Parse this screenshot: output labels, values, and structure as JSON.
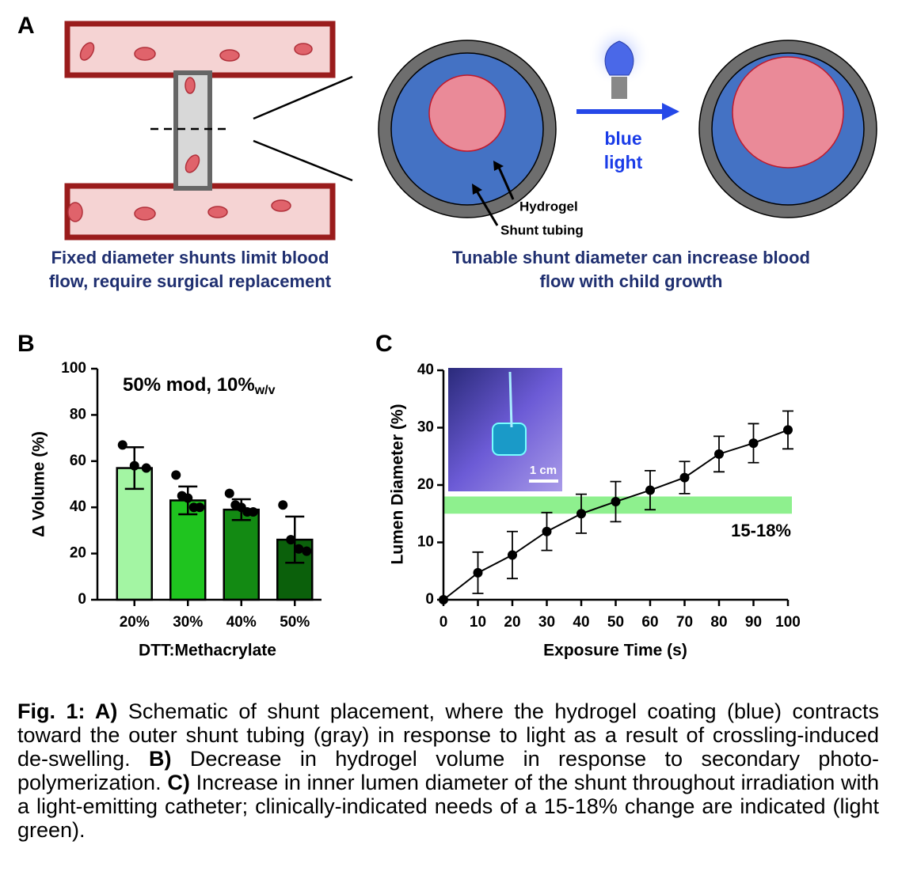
{
  "panel_labels": [
    "A",
    "B",
    "C"
  ],
  "schematic": {
    "left_caption": [
      "Fixed diameter shunts limit blood",
      "flow, require surgical replacement"
    ],
    "right_caption": [
      "Tunable shunt diameter can increase blood",
      "flow with child growth"
    ],
    "light_label": [
      "blue",
      "light"
    ],
    "hydrogel_label": "Hydrogel",
    "tubing_label": "Shunt tubing"
  },
  "chart_data": [
    {
      "type": "bar",
      "title": "50% mod, 10%",
      "title_subscript": "w/v",
      "categories": [
        "20%",
        "30%",
        "40%",
        "50%"
      ],
      "values": [
        57,
        43,
        39,
        26
      ],
      "errors": [
        9,
        6,
        4.5,
        10
      ],
      "points": [
        [
          67,
          58,
          57
        ],
        [
          54,
          45,
          44,
          40,
          40
        ],
        [
          46,
          41,
          40,
          38,
          38
        ],
        [
          41,
          26,
          22,
          21
        ]
      ],
      "colors": [
        "#a3f5a3",
        "#1fc41f",
        "#138a13",
        "#0b600b"
      ],
      "xlabel": "DTT:Methacrylate",
      "ylabel": "Δ Volume (%)",
      "ylim": [
        0,
        100
      ],
      "yticks": [
        0,
        20,
        40,
        60,
        80,
        100
      ]
    },
    {
      "type": "line",
      "x": [
        0,
        10,
        20,
        30,
        40,
        50,
        60,
        70,
        80,
        90,
        100
      ],
      "values": [
        0,
        4.7,
        7.8,
        11.9,
        15,
        17.1,
        19.1,
        21.3,
        25.4,
        27.3,
        29.6
      ],
      "errors": [
        0,
        3.6,
        4.1,
        3.3,
        3.4,
        3.5,
        3.4,
        2.8,
        3.1,
        3.4,
        3.3
      ],
      "color": "#000000",
      "band": [
        15,
        18
      ],
      "band_color": "#8ef08e",
      "band_label": "15-18%",
      "inset_scale_label": "1 cm",
      "xlabel": "Exposure Time (s)",
      "ylabel": "Lumen Diameter (%)",
      "xlim": [
        0,
        100
      ],
      "xticks": [
        0,
        10,
        20,
        30,
        40,
        50,
        60,
        70,
        80,
        90,
        100
      ],
      "ylim": [
        0,
        40
      ],
      "yticks": [
        0,
        10,
        20,
        30,
        40
      ]
    }
  ],
  "caption": [
    {
      "text": "Fig. 1: A)",
      "bold": true
    },
    {
      "text": " Schematic of shunt placement, where the hydrogel coating (blue) contracts toward the outer shunt tubing (gray) in response to light as a result of crossling-induced de-swelling. ",
      "bold": false
    },
    {
      "text": "B)",
      "bold": true
    },
    {
      "text": " Decrease in hydrogel volume in response to secondary photo-polymerization. ",
      "bold": false
    },
    {
      "text": "C)",
      "bold": true
    },
    {
      "text": " Increase in inner lumen diameter of the shunt throughout irradiation with a light-emitting catheter; clinically-indicated needs of a 15-18% change are indicated (light green).",
      "bold": false
    }
  ]
}
